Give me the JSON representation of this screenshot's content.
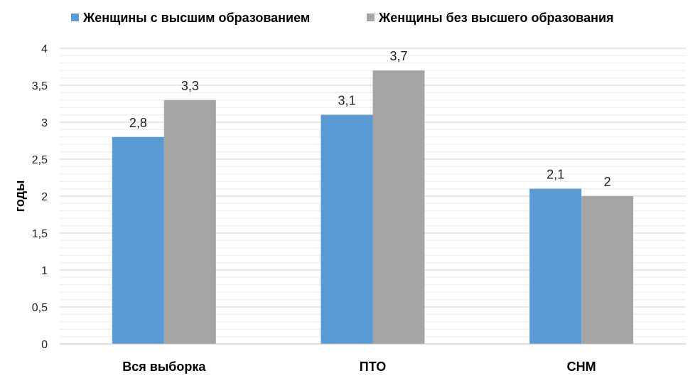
{
  "chart_data": {
    "type": "bar",
    "title": "",
    "xlabel": "",
    "ylabel": "годы",
    "ylim": [
      0,
      4
    ],
    "yticks": [
      "0",
      "0,5",
      "1",
      "1,5",
      "2",
      "2,5",
      "3",
      "3,5",
      "4"
    ],
    "grid": true,
    "legend_position": "top",
    "categories": [
      "Вся выборка",
      "ПТО",
      "СНМ"
    ],
    "series": [
      {
        "name": "Женщины с высшим образованием",
        "color": "#5b9bd5",
        "values": [
          2.8,
          3.1,
          2.1
        ],
        "labels": [
          "2,8",
          "3,1",
          "2,1"
        ]
      },
      {
        "name": "Женщины без высшего образования",
        "color": "#a5a5a5",
        "values": [
          3.3,
          3.7,
          2
        ],
        "labels": [
          "3,3",
          "3,7",
          "2"
        ]
      }
    ]
  }
}
